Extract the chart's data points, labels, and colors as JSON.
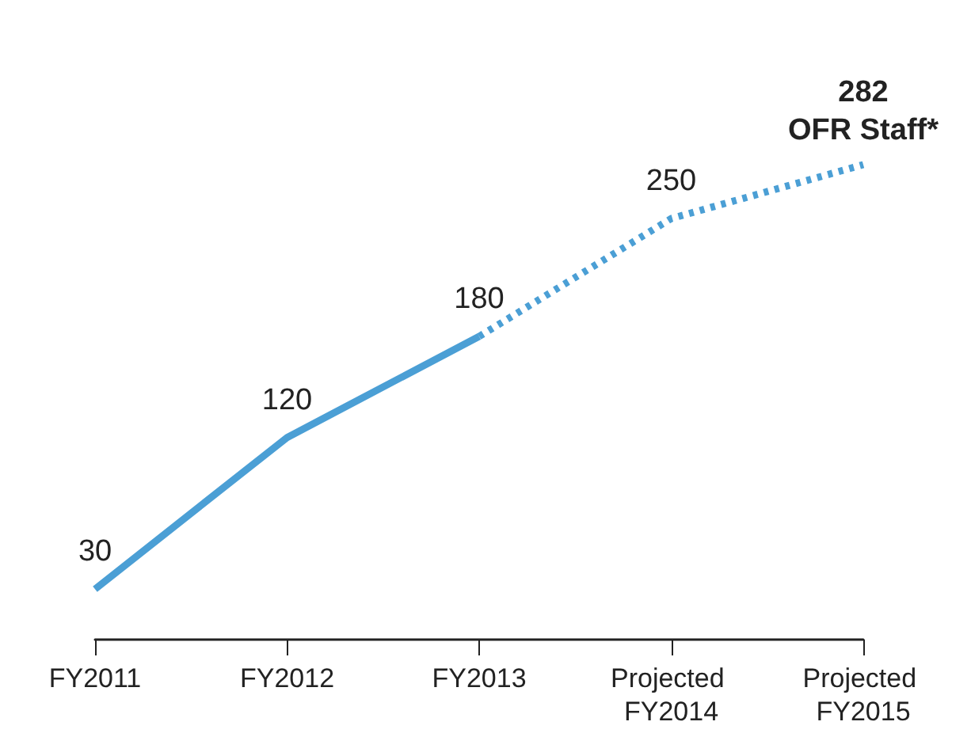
{
  "chart_data": {
    "type": "line",
    "categories": [
      "FY2011",
      "FY2012",
      "FY2013",
      "Projected FY2014",
      "Projected FY2015"
    ],
    "series": [
      {
        "color": "#4b9fd5",
        "line_style": "solid",
        "values": [
          30,
          120,
          180,
          null,
          null
        ],
        "value_labels": [
          "30",
          "120",
          "180",
          null,
          null
        ]
      },
      {
        "color": "#4b9fd5",
        "line_style": "dotted",
        "values": [
          null,
          null,
          180,
          250,
          282
        ],
        "value_labels": [
          null,
          null,
          null,
          "250",
          "282"
        ]
      }
    ],
    "annotations": [
      {
        "text": "OFR Staff*",
        "x": "Projected FY2015",
        "y": 282
      }
    ],
    "marker": "none",
    "grid": false,
    "tick_labels": "x"
  }
}
